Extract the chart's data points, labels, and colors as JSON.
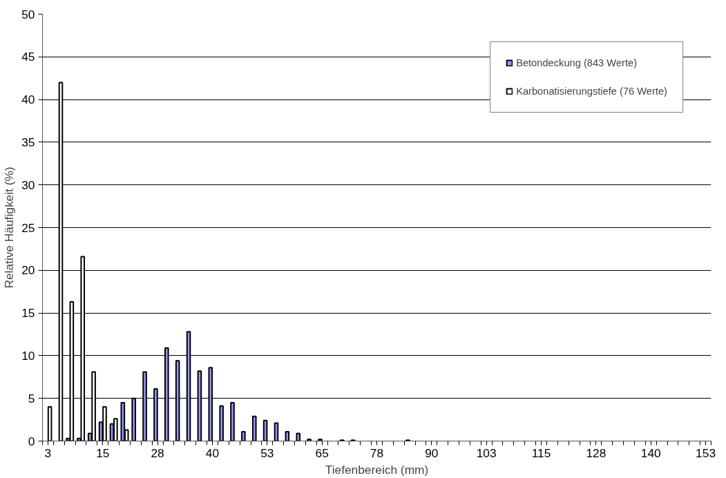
{
  "chart_data": {
    "type": "bar",
    "xlabel": "Tiefenbereich (mm)",
    "ylabel": "Relative Häufigkeit (%)",
    "categories": [
      "3",
      null,
      null,
      null,
      null,
      "15",
      null,
      null,
      null,
      null,
      "28",
      null,
      null,
      null,
      null,
      "40",
      null,
      null,
      null,
      null,
      "53",
      null,
      null,
      null,
      null,
      "65",
      null,
      null,
      null,
      null,
      "78",
      null,
      null,
      null,
      null,
      "90",
      null,
      null,
      null,
      null,
      "103",
      null,
      null,
      null,
      null,
      "115",
      null,
      null,
      null,
      null,
      "128",
      null,
      null,
      null,
      null,
      "140",
      null,
      null,
      null,
      null,
      "153"
    ],
    "series": [
      {
        "name": "Betondeckung (843 Werte)",
        "color": "#9999ff",
        "values": [
          null,
          null,
          0.3,
          0.3,
          0.9,
          2.2,
          2.0,
          4.5,
          5.0,
          8.1,
          6.1,
          10.9,
          9.4,
          12.8,
          8.2,
          8.6,
          4.1,
          4.5,
          1.1,
          2.9,
          2.4,
          2.1,
          1.1,
          0.9,
          0.2,
          0.2,
          null,
          0.1,
          0.1,
          null,
          null,
          null,
          null,
          0.1,
          null,
          null,
          null,
          null,
          null,
          null,
          null,
          null,
          null,
          null,
          null,
          null,
          null,
          null,
          null,
          null,
          null,
          null,
          null,
          null,
          null,
          null,
          null,
          null,
          null,
          null,
          null
        ]
      },
      {
        "name": "Karbonatisierungstiefe (76 Werte)",
        "color": "#ffffff",
        "values": [
          4.0,
          42.0,
          16.3,
          21.6,
          8.1,
          4.0,
          2.6,
          1.3,
          null,
          null,
          null,
          null,
          null,
          null,
          null,
          null,
          null,
          null,
          null,
          null,
          null,
          null,
          null,
          null,
          null,
          null,
          null,
          null,
          null,
          null,
          null,
          null,
          null,
          null,
          null,
          null,
          null,
          null,
          null,
          null,
          null,
          null,
          null,
          null,
          null,
          null,
          null,
          null,
          null,
          null,
          null,
          null,
          null,
          null,
          null,
          null,
          null,
          null,
          null,
          null,
          null
        ]
      }
    ],
    "ylim": [
      0,
      50
    ],
    "yticks": [
      0,
      5,
      10,
      15,
      20,
      25,
      30,
      35,
      40,
      45,
      50
    ],
    "grid": "y",
    "legend": "top right"
  }
}
